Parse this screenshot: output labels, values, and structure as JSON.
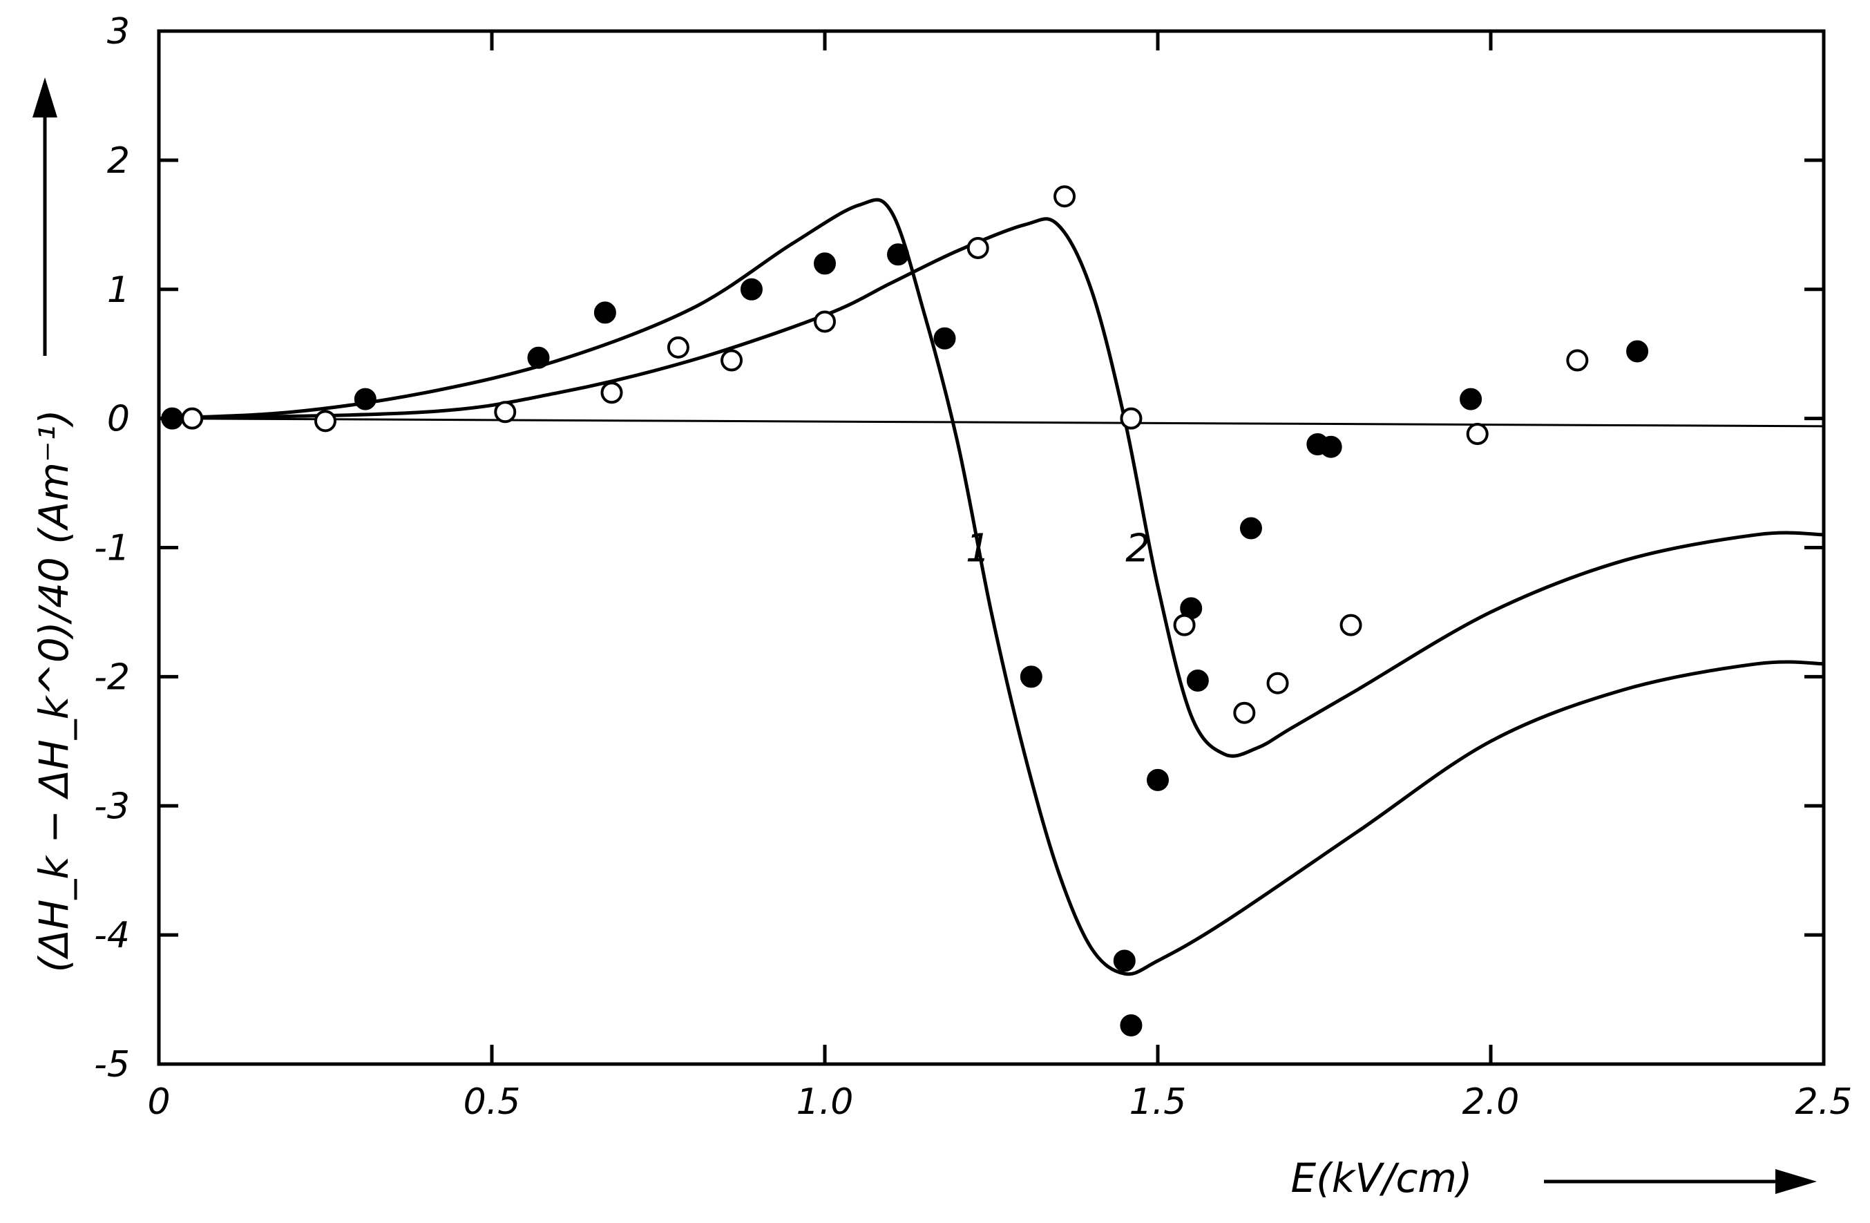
{
  "chart_data": {
    "type": "scatter",
    "title": "",
    "xlabel": "E(kV/cm)",
    "ylabel": "(ΔH_k − ΔH_k^0)/40 (Am⁻¹)",
    "xlim": [
      0,
      2.5
    ],
    "ylim": [
      -5,
      3
    ],
    "xticks": [
      0,
      0.5,
      1.0,
      1.5,
      2.0,
      2.5
    ],
    "xtick_labels": [
      "0",
      "0.5",
      "1.0",
      "1.5",
      "2.0",
      "2.5"
    ],
    "yticks": [
      3,
      2,
      1,
      0,
      -1,
      -2,
      -3,
      -4,
      -5
    ],
    "ytick_labels": [
      "3",
      "2",
      "1",
      "0",
      "-1",
      "-2",
      "-3",
      "-4",
      "-5"
    ],
    "grid": false,
    "baseline": {
      "x": [
        0,
        2.5
      ],
      "y": [
        0.0,
        -0.06
      ]
    },
    "curves": [
      {
        "name": "1",
        "label": "1",
        "label_at": [
          1.23,
          -1.0
        ],
        "x": [
          0,
          0.2,
          0.4,
          0.6,
          0.8,
          0.95,
          1.05,
          1.1,
          1.15,
          1.2,
          1.25,
          1.3,
          1.35,
          1.4,
          1.45,
          1.5,
          1.6,
          1.8,
          2.0,
          2.2,
          2.4,
          2.5
        ],
        "y": [
          0,
          0.05,
          0.2,
          0.45,
          0.85,
          1.35,
          1.65,
          1.6,
          0.8,
          -0.2,
          -1.5,
          -2.6,
          -3.5,
          -4.1,
          -4.3,
          -4.2,
          -3.9,
          -3.2,
          -2.5,
          -2.1,
          -1.9,
          -1.9
        ]
      },
      {
        "name": "2",
        "label": "2",
        "label_at": [
          1.47,
          -1.0
        ],
        "x": [
          0,
          0.4,
          0.6,
          0.8,
          1.0,
          1.1,
          1.2,
          1.3,
          1.35,
          1.4,
          1.45,
          1.5,
          1.55,
          1.6,
          1.65,
          1.7,
          1.8,
          2.0,
          2.2,
          2.4,
          2.5
        ],
        "y": [
          0,
          0.05,
          0.2,
          0.45,
          0.8,
          1.05,
          1.3,
          1.5,
          1.5,
          1.0,
          0.0,
          -1.3,
          -2.3,
          -2.6,
          -2.55,
          -2.4,
          -2.1,
          -1.5,
          -1.1,
          -0.9,
          -0.9
        ]
      }
    ],
    "series": [
      {
        "name": "filled",
        "marker": "filled-circle",
        "x": [
          0.02,
          0.31,
          0.57,
          0.67,
          0.89,
          1.0,
          1.11,
          1.18,
          1.31,
          1.45,
          1.46,
          1.5,
          1.55,
          1.56,
          1.64,
          1.74,
          1.76,
          1.97,
          2.22
        ],
        "y": [
          0.0,
          0.15,
          0.47,
          0.82,
          1.0,
          1.2,
          1.27,
          0.62,
          -2.0,
          -4.2,
          -4.7,
          -2.8,
          -1.47,
          -2.03,
          -0.85,
          -0.2,
          -0.22,
          0.15,
          0.52
        ]
      },
      {
        "name": "open",
        "marker": "open-circle",
        "x": [
          0.05,
          0.25,
          0.52,
          0.68,
          0.78,
          0.86,
          1.0,
          1.23,
          1.36,
          1.46,
          1.54,
          1.63,
          1.68,
          1.79,
          1.98,
          2.13
        ],
        "y": [
          0.0,
          -0.02,
          0.05,
          0.2,
          0.55,
          0.45,
          0.75,
          1.32,
          1.72,
          0.0,
          -1.6,
          -2.28,
          -2.05,
          -1.6,
          -0.12,
          0.45
        ]
      }
    ]
  }
}
